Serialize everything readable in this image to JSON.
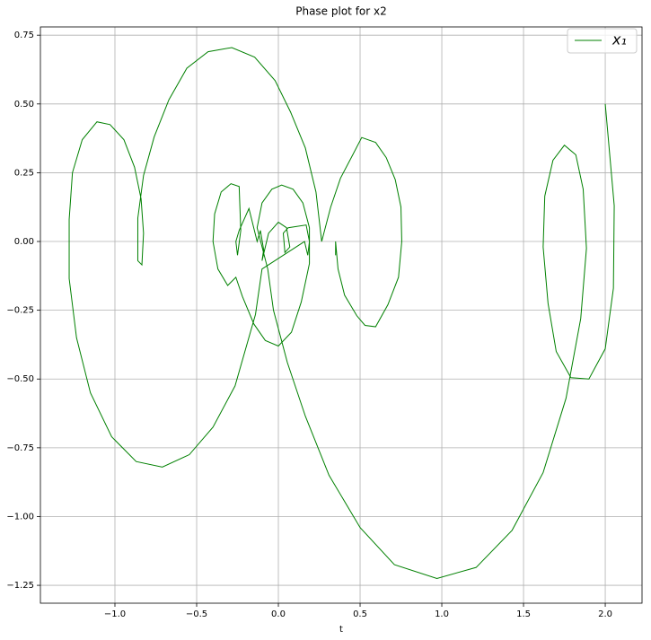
{
  "chart_data": {
    "type": "line",
    "title": "Phase plot for x2",
    "x_label": "t",
    "x": [
      2.0,
      2.055,
      2.05,
      2.0,
      1.9,
      1.79,
      1.7,
      1.65,
      1.62,
      1.63,
      1.68,
      1.75,
      1.82,
      1.865,
      1.885,
      1.85,
      1.76,
      1.62,
      1.43,
      1.21,
      0.97,
      0.71,
      0.5,
      0.31,
      0.165,
      0.055,
      -0.03,
      -0.065,
      -0.13,
      -0.1,
      -0.04,
      0.02,
      0.09,
      0.15,
      0.19,
      0.19,
      0.14,
      0.08,
      0.0,
      -0.08,
      -0.15,
      -0.22,
      -0.26,
      -0.31,
      -0.37,
      -0.4,
      -0.39,
      -0.35,
      -0.29,
      -0.24,
      -0.23,
      -0.25,
      -0.26,
      -0.24,
      -0.18,
      -0.13,
      -0.11,
      -0.09,
      -0.1,
      -0.06,
      0.0,
      0.05,
      0.07,
      0.04,
      0.03,
      0.06,
      0.17,
      0.19,
      0.18,
      0.16,
      -0.1,
      -0.14,
      -0.265,
      -0.4,
      -0.545,
      -0.71,
      -0.87,
      -1.02,
      -1.15,
      -1.235,
      -1.28,
      -1.28,
      -1.26,
      -1.2,
      -1.11,
      -1.03,
      -0.945,
      -0.88,
      -0.84,
      -0.825,
      -0.835,
      -0.86,
      -0.86,
      -0.825,
      -0.76,
      -0.67,
      -0.56,
      -0.43,
      -0.285,
      -0.145,
      -0.02,
      0.075,
      0.165,
      0.23,
      0.265,
      0.32,
      0.38,
      0.455,
      0.51,
      0.595,
      0.66,
      0.715,
      0.75,
      0.755,
      0.735,
      0.67,
      0.595,
      0.53,
      0.48,
      0.405,
      0.365,
      0.35,
      0.35
    ],
    "series": [
      {
        "name": "x₁",
        "color": "#008000",
        "values": [
          0.5,
          0.13,
          -0.17,
          -0.39,
          -0.5,
          -0.495,
          -0.4,
          -0.225,
          -0.02,
          0.165,
          0.295,
          0.35,
          0.315,
          0.19,
          -0.025,
          -0.28,
          -0.57,
          -0.84,
          -1.05,
          -1.185,
          -1.225,
          -1.175,
          -1.04,
          -0.85,
          -0.635,
          -0.44,
          -0.25,
          -0.1,
          0.05,
          0.14,
          0.19,
          0.205,
          0.19,
          0.14,
          0.05,
          -0.08,
          -0.22,
          -0.33,
          -0.38,
          -0.36,
          -0.3,
          -0.2,
          -0.13,
          -0.16,
          -0.1,
          0.0,
          0.1,
          0.18,
          0.21,
          0.2,
          0.04,
          -0.05,
          0.0,
          0.04,
          0.12,
          0.0,
          0.04,
          -0.03,
          -0.07,
          0.03,
          0.07,
          0.05,
          -0.02,
          -0.04,
          0.03,
          0.05,
          0.06,
          0.0,
          -0.05,
          0.0,
          -0.1,
          -0.265,
          -0.525,
          -0.675,
          -0.775,
          -0.82,
          -0.8,
          -0.71,
          -0.55,
          -0.35,
          -0.135,
          0.08,
          0.25,
          0.37,
          0.435,
          0.425,
          0.37,
          0.27,
          0.155,
          0.03,
          -0.085,
          -0.07,
          0.085,
          0.24,
          0.38,
          0.515,
          0.63,
          0.69,
          0.705,
          0.67,
          0.585,
          0.47,
          0.34,
          0.18,
          0.0,
          0.125,
          0.23,
          0.315,
          0.378,
          0.36,
          0.305,
          0.225,
          0.125,
          0.0,
          -0.13,
          -0.23,
          -0.31,
          -0.305,
          -0.27,
          -0.195,
          -0.1,
          0.0,
          -0.05
        ]
      }
    ],
    "xlim": [
      -1.456,
      2.225
    ],
    "ylim": [
      -1.315,
      0.78
    ],
    "xticks": [
      {
        "value": -1.0,
        "label": "−1.0"
      },
      {
        "value": -0.5,
        "label": "−0.5"
      },
      {
        "value": 0.0,
        "label": "0.0"
      },
      {
        "value": 0.5,
        "label": "0.5"
      },
      {
        "value": 1.0,
        "label": "1.0"
      },
      {
        "value": 1.5,
        "label": "1.5"
      },
      {
        "value": 2.0,
        "label": "2.0"
      }
    ],
    "yticks": [
      {
        "value": 0.75,
        "label": "0.75"
      },
      {
        "value": 0.5,
        "label": "0.50"
      },
      {
        "value": 0.25,
        "label": "0.25"
      },
      {
        "value": 0.0,
        "label": "0.00"
      },
      {
        "value": -0.25,
        "label": "−0.25"
      },
      {
        "value": -0.5,
        "label": "−0.50"
      },
      {
        "value": -0.75,
        "label": "−0.75"
      },
      {
        "value": -1.0,
        "label": "−1.00"
      },
      {
        "value": -1.25,
        "label": "−1.25"
      }
    ],
    "grid": true,
    "legend": "upper right"
  }
}
